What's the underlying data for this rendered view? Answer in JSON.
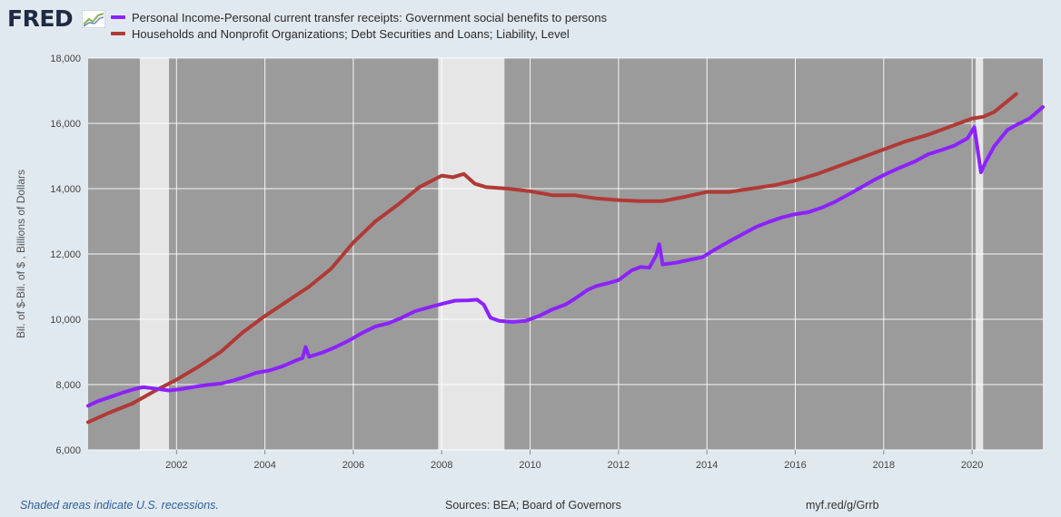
{
  "brand": {
    "logo_text": "FRED"
  },
  "colors": {
    "series1": "#8b22ff",
    "series2": "#b03a36",
    "plot_bg": "#9b9b9b",
    "recession": "#e6e6e6"
  },
  "footer": {
    "recession_note": "Shaded areas indicate U.S. recessions.",
    "sources": "Sources: BEA; Board of Governors",
    "link": "myf.red/g/Grrb"
  },
  "chart_data": {
    "type": "line",
    "ylabel": "Bil. of $-Bil. of $ , Billions of Dollars",
    "xlim": [
      2000.0,
      2021.6
    ],
    "ylim": [
      6000,
      18000
    ],
    "y_ticks": [
      6000,
      8000,
      10000,
      12000,
      14000,
      16000,
      18000
    ],
    "y_tick_labels": [
      "6,000",
      "8,000",
      "10,000",
      "12,000",
      "14,000",
      "16,000",
      "18,000"
    ],
    "x_ticks": [
      2002,
      2004,
      2006,
      2008,
      2010,
      2012,
      2014,
      2016,
      2018,
      2020
    ],
    "x_tick_labels": [
      "2002",
      "2004",
      "2006",
      "2008",
      "2010",
      "2012",
      "2014",
      "2016",
      "2018",
      "2020"
    ],
    "grid": true,
    "recessions": [
      [
        2001.17,
        2001.83
      ],
      [
        2007.92,
        2009.42
      ],
      [
        2020.08,
        2020.25
      ]
    ],
    "series": [
      {
        "name": "Personal Income-Personal current transfer receipts: Government social benefits to persons",
        "x": [
          2000.0,
          2000.2,
          2000.5,
          2000.8,
          2001.1,
          2001.25,
          2001.5,
          2001.83,
          2002.1,
          2002.4,
          2002.7,
          2003.0,
          2003.3,
          2003.6,
          2003.8,
          2004.1,
          2004.4,
          2004.7,
          2004.85,
          2004.92,
          2005.0,
          2005.3,
          2005.6,
          2005.9,
          2006.2,
          2006.5,
          2006.8,
          2007.1,
          2007.4,
          2007.7,
          2008.0,
          2008.3,
          2008.6,
          2008.8,
          2008.95,
          2009.1,
          2009.3,
          2009.6,
          2009.9,
          2010.2,
          2010.5,
          2010.8,
          2011.0,
          2011.3,
          2011.5,
          2011.8,
          2012.0,
          2012.3,
          2012.5,
          2012.7,
          2012.85,
          2012.92,
          2013.0,
          2013.3,
          2013.6,
          2013.9,
          2014.2,
          2014.5,
          2014.8,
          2015.1,
          2015.4,
          2015.7,
          2016.0,
          2016.3,
          2016.6,
          2016.9,
          2017.2,
          2017.5,
          2017.8,
          2018.1,
          2018.4,
          2018.7,
          2019.0,
          2019.3,
          2019.6,
          2019.9,
          2020.05,
          2020.2,
          2020.3,
          2020.5,
          2020.8,
          2021.0,
          2021.3,
          2021.6
        ],
        "values": [
          7350,
          7480,
          7620,
          7760,
          7880,
          7920,
          7880,
          7820,
          7860,
          7930,
          7990,
          8030,
          8130,
          8260,
          8360,
          8430,
          8560,
          8740,
          8810,
          9150,
          8850,
          8980,
          9150,
          9350,
          9580,
          9780,
          9880,
          10050,
          10250,
          10360,
          10470,
          10570,
          10580,
          10600,
          10450,
          10050,
          9950,
          9920,
          9950,
          10100,
          10300,
          10450,
          10620,
          10900,
          11020,
          11120,
          11200,
          11500,
          11600,
          11580,
          11950,
          12300,
          11680,
          11730,
          11820,
          11900,
          12150,
          12380,
          12600,
          12820,
          12980,
          13120,
          13220,
          13280,
          13420,
          13600,
          13820,
          14050,
          14280,
          14480,
          14660,
          14830,
          15050,
          15180,
          15320,
          15550,
          15880,
          14500,
          14800,
          15300,
          15800,
          15950,
          16150,
          16500
        ]
      },
      {
        "name": "Households and Nonprofit Organizations; Debt Securities and Loans; Liability, Level",
        "x": [
          2000.0,
          2000.5,
          2001.0,
          2001.5,
          2002.0,
          2002.5,
          2003.0,
          2003.5,
          2004.0,
          2004.5,
          2005.0,
          2005.5,
          2006.0,
          2006.5,
          2007.0,
          2007.5,
          2008.0,
          2008.25,
          2008.5,
          2008.75,
          2009.0,
          2009.5,
          2010.0,
          2010.5,
          2011.0,
          2011.5,
          2012.0,
          2012.5,
          2013.0,
          2013.5,
          2014.0,
          2014.5,
          2015.0,
          2015.5,
          2016.0,
          2016.5,
          2017.0,
          2017.5,
          2018.0,
          2018.5,
          2019.0,
          2019.5,
          2020.0,
          2020.25,
          2020.5,
          2021.0
        ],
        "values": [
          6850,
          7150,
          7420,
          7800,
          8150,
          8550,
          9000,
          9600,
          10100,
          10550,
          11000,
          11550,
          12350,
          13000,
          13500,
          14050,
          14400,
          14350,
          14450,
          14150,
          14050,
          14000,
          13920,
          13800,
          13800,
          13700,
          13650,
          13620,
          13620,
          13750,
          13900,
          13900,
          14000,
          14100,
          14250,
          14450,
          14700,
          14950,
          15200,
          15450,
          15650,
          15900,
          16150,
          16200,
          16350,
          16900
        ]
      }
    ]
  }
}
